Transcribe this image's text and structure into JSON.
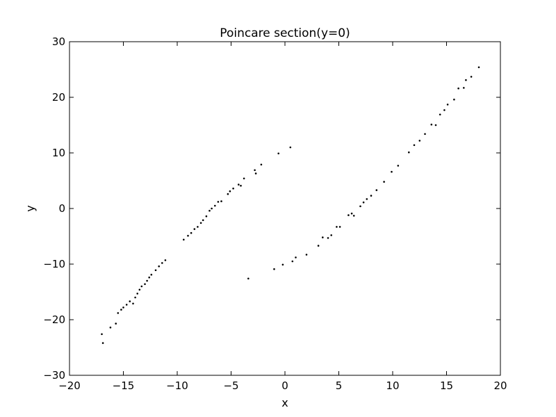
{
  "chart_data": {
    "type": "scatter",
    "title": "Poincare section(y=0)",
    "xlabel": "x",
    "ylabel": "y",
    "xlim": [
      -20,
      20
    ],
    "ylim": [
      -30,
      30
    ],
    "grid": false,
    "marker_color": "#000000",
    "x_ticks": [
      {
        "value": -20,
        "label": "−20"
      },
      {
        "value": -15,
        "label": "−15"
      },
      {
        "value": -10,
        "label": "−10"
      },
      {
        "value": -5,
        "label": "−5"
      },
      {
        "value": 0,
        "label": "0"
      },
      {
        "value": 5,
        "label": "5"
      },
      {
        "value": 10,
        "label": "10"
      },
      {
        "value": 15,
        "label": "15"
      },
      {
        "value": 20,
        "label": "20"
      }
    ],
    "y_ticks": [
      {
        "value": -30,
        "label": "−30"
      },
      {
        "value": -20,
        "label": "−20"
      },
      {
        "value": -10,
        "label": "−10"
      },
      {
        "value": 0,
        "label": "0"
      },
      {
        "value": 10,
        "label": "10"
      },
      {
        "value": 20,
        "label": "20"
      },
      {
        "value": 30,
        "label": "30"
      }
    ],
    "points": [
      [
        -17.0,
        -22.6
      ],
      [
        -16.9,
        -24.2
      ],
      [
        -16.2,
        -21.4
      ],
      [
        -15.7,
        -20.7
      ],
      [
        -15.5,
        -18.8
      ],
      [
        -15.2,
        -18.2
      ],
      [
        -15.0,
        -17.8
      ],
      [
        -14.7,
        -17.3
      ],
      [
        -14.4,
        -16.7
      ],
      [
        -14.1,
        -17.1
      ],
      [
        -13.9,
        -16.0
      ],
      [
        -13.7,
        -15.3
      ],
      [
        -13.5,
        -14.6
      ],
      [
        -13.3,
        -14.0
      ],
      [
        -13.0,
        -13.6
      ],
      [
        -12.8,
        -13.0
      ],
      [
        -12.6,
        -12.4
      ],
      [
        -12.4,
        -11.9
      ],
      [
        -12.0,
        -11.1
      ],
      [
        -11.7,
        -10.4
      ],
      [
        -11.4,
        -9.8
      ],
      [
        -11.1,
        -9.3
      ],
      [
        -9.4,
        -5.6
      ],
      [
        -9.0,
        -4.9
      ],
      [
        -8.7,
        -4.4
      ],
      [
        -8.4,
        -3.7
      ],
      [
        -8.1,
        -3.3
      ],
      [
        -7.8,
        -2.6
      ],
      [
        -7.6,
        -2.1
      ],
      [
        -7.3,
        -1.4
      ],
      [
        -7.0,
        -0.4
      ],
      [
        -6.8,
        0.0
      ],
      [
        -6.5,
        0.5
      ],
      [
        -6.2,
        1.2
      ],
      [
        -5.9,
        1.3
      ],
      [
        -5.3,
        2.6
      ],
      [
        -5.1,
        3.1
      ],
      [
        -4.8,
        3.6
      ],
      [
        -4.3,
        4.3
      ],
      [
        -4.1,
        4.1
      ],
      [
        -3.8,
        5.4
      ],
      [
        -2.8,
        6.9
      ],
      [
        -2.7,
        6.3
      ],
      [
        -2.2,
        7.9
      ],
      [
        -0.6,
        9.9
      ],
      [
        0.5,
        11.0
      ],
      [
        -3.4,
        -12.6
      ],
      [
        -1.0,
        -10.9
      ],
      [
        -0.2,
        -10.1
      ],
      [
        0.7,
        -9.5
      ],
      [
        1.0,
        -8.8
      ],
      [
        2.0,
        -8.3
      ],
      [
        3.1,
        -6.7
      ],
      [
        3.5,
        -5.2
      ],
      [
        4.0,
        -5.3
      ],
      [
        4.3,
        -4.8
      ],
      [
        4.8,
        -3.3
      ],
      [
        5.1,
        -3.3
      ],
      [
        5.9,
        -1.2
      ],
      [
        6.2,
        -0.9
      ],
      [
        6.4,
        -1.3
      ],
      [
        7.0,
        0.4
      ],
      [
        7.3,
        1.1
      ],
      [
        7.6,
        1.7
      ],
      [
        8.0,
        2.3
      ],
      [
        8.5,
        3.3
      ],
      [
        9.2,
        4.8
      ],
      [
        9.9,
        6.6
      ],
      [
        10.5,
        7.7
      ],
      [
        11.5,
        10.1
      ],
      [
        12.0,
        11.4
      ],
      [
        12.5,
        12.2
      ],
      [
        13.0,
        13.4
      ],
      [
        13.6,
        15.1
      ],
      [
        14.0,
        15.0
      ],
      [
        14.4,
        16.9
      ],
      [
        14.8,
        17.7
      ],
      [
        15.1,
        18.7
      ],
      [
        15.7,
        19.6
      ],
      [
        16.1,
        21.6
      ],
      [
        16.6,
        21.7
      ],
      [
        16.8,
        23.1
      ],
      [
        17.3,
        23.7
      ],
      [
        18.0,
        25.4
      ]
    ]
  }
}
